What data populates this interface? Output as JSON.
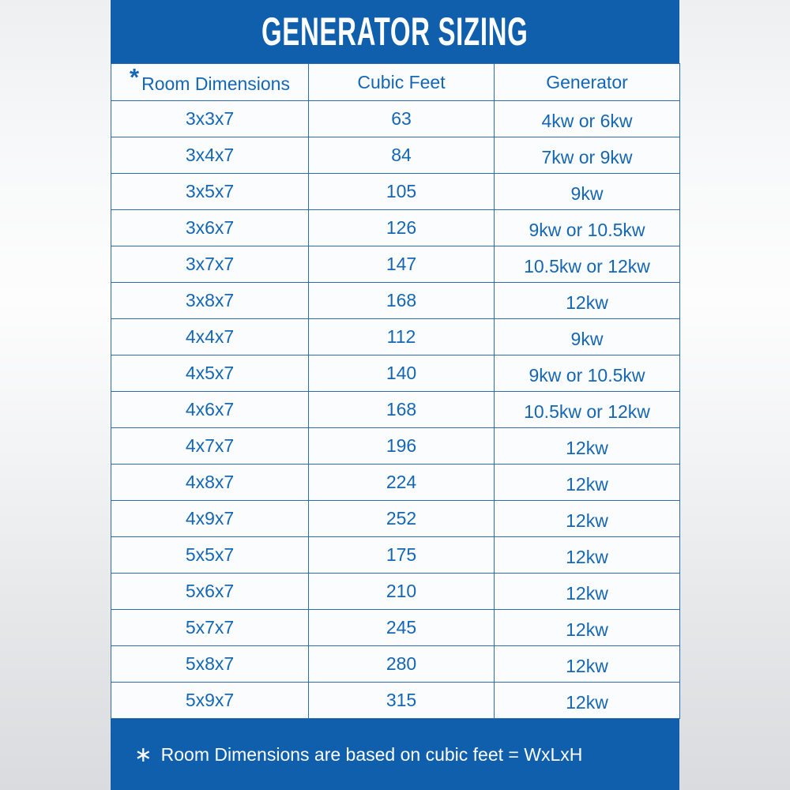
{
  "title": "GENERATOR SIZING",
  "colors": {
    "panel_blue": "#0f5fad",
    "table_text_blue": "#1566b3",
    "grid_border_blue": "#2d6dad",
    "title_text": "#ffffff",
    "cell_background": "#fbfcfd"
  },
  "table": {
    "header_asterisk": "*",
    "columns": [
      "Room Dimensions",
      "Cubic Feet",
      "Generator"
    ],
    "rows": [
      [
        "3x3x7",
        "63",
        "4kw or 6kw"
      ],
      [
        "3x4x7",
        "84",
        "7kw or 9kw"
      ],
      [
        "3x5x7",
        "105",
        "9kw"
      ],
      [
        "3x6x7",
        "126",
        "9kw or 10.5kw"
      ],
      [
        "3x7x7",
        "147",
        "10.5kw or 12kw"
      ],
      [
        "3x8x7",
        "168",
        "12kw"
      ],
      [
        "4x4x7",
        "112",
        "9kw"
      ],
      [
        "4x5x7",
        "140",
        "9kw or 10.5kw"
      ],
      [
        "4x6x7",
        "168",
        "10.5kw or 12kw"
      ],
      [
        "4x7x7",
        "196",
        "12kw"
      ],
      [
        "4x8x7",
        "224",
        "12kw"
      ],
      [
        "4x9x7",
        "252",
        "12kw"
      ],
      [
        "5x5x7",
        "175",
        "12kw"
      ],
      [
        "5x6x7",
        "210",
        "12kw"
      ],
      [
        "5x7x7",
        "245",
        "12kw"
      ],
      [
        "5x8x7",
        "280",
        "12kw"
      ],
      [
        "5x9x7",
        "315",
        "12kw"
      ]
    ]
  },
  "footer": {
    "asterisk": "∗",
    "note": "Room Dimensions are based on cubic feet = WxLxH"
  },
  "chart_data": {
    "type": "table",
    "title": "GENERATOR SIZING",
    "columns": [
      "Room Dimensions",
      "Cubic Feet",
      "Generator"
    ],
    "rows": [
      [
        "3x3x7",
        63,
        "4kw or 6kw"
      ],
      [
        "3x4x7",
        84,
        "7kw or 9kw"
      ],
      [
        "3x5x7",
        105,
        "9kw"
      ],
      [
        "3x6x7",
        126,
        "9kw or 10.5kw"
      ],
      [
        "3x7x7",
        147,
        "10.5kw or 12kw"
      ],
      [
        "3x8x7",
        168,
        "12kw"
      ],
      [
        "4x4x7",
        112,
        "9kw"
      ],
      [
        "4x5x7",
        140,
        "9kw or 10.5kw"
      ],
      [
        "4x6x7",
        168,
        "10.5kw or 12kw"
      ],
      [
        "4x7x7",
        196,
        "12kw"
      ],
      [
        "4x8x7",
        224,
        "12kw"
      ],
      [
        "4x9x7",
        252,
        "12kw"
      ],
      [
        "5x5x7",
        175,
        "12kw"
      ],
      [
        "5x6x7",
        210,
        "12kw"
      ],
      [
        "5x7x7",
        245,
        "12kw"
      ],
      [
        "5x8x7",
        280,
        "12kw"
      ],
      [
        "5x9x7",
        315,
        "12kw"
      ]
    ],
    "footnote": "Room Dimensions are based on cubic feet = WxLxH"
  }
}
